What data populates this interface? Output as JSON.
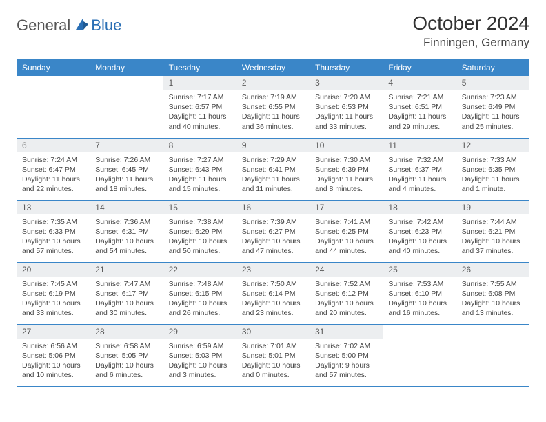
{
  "logo": {
    "part1": "General",
    "part2": "Blue"
  },
  "title": "October 2024",
  "location": "Finningen, Germany",
  "colors": {
    "header_bg": "#3a86c8",
    "header_fg": "#ffffff",
    "daynum_bg": "#eceef0",
    "border": "#3a86c8",
    "logo_gray": "#555555",
    "logo_blue": "#2a6fb5"
  },
  "weekdays": [
    "Sunday",
    "Monday",
    "Tuesday",
    "Wednesday",
    "Thursday",
    "Friday",
    "Saturday"
  ],
  "weeks": [
    [
      null,
      null,
      {
        "n": "1",
        "sr": "Sunrise: 7:17 AM",
        "ss": "Sunset: 6:57 PM",
        "dl": "Daylight: 11 hours and 40 minutes."
      },
      {
        "n": "2",
        "sr": "Sunrise: 7:19 AM",
        "ss": "Sunset: 6:55 PM",
        "dl": "Daylight: 11 hours and 36 minutes."
      },
      {
        "n": "3",
        "sr": "Sunrise: 7:20 AM",
        "ss": "Sunset: 6:53 PM",
        "dl": "Daylight: 11 hours and 33 minutes."
      },
      {
        "n": "4",
        "sr": "Sunrise: 7:21 AM",
        "ss": "Sunset: 6:51 PM",
        "dl": "Daylight: 11 hours and 29 minutes."
      },
      {
        "n": "5",
        "sr": "Sunrise: 7:23 AM",
        "ss": "Sunset: 6:49 PM",
        "dl": "Daylight: 11 hours and 25 minutes."
      }
    ],
    [
      {
        "n": "6",
        "sr": "Sunrise: 7:24 AM",
        "ss": "Sunset: 6:47 PM",
        "dl": "Daylight: 11 hours and 22 minutes."
      },
      {
        "n": "7",
        "sr": "Sunrise: 7:26 AM",
        "ss": "Sunset: 6:45 PM",
        "dl": "Daylight: 11 hours and 18 minutes."
      },
      {
        "n": "8",
        "sr": "Sunrise: 7:27 AM",
        "ss": "Sunset: 6:43 PM",
        "dl": "Daylight: 11 hours and 15 minutes."
      },
      {
        "n": "9",
        "sr": "Sunrise: 7:29 AM",
        "ss": "Sunset: 6:41 PM",
        "dl": "Daylight: 11 hours and 11 minutes."
      },
      {
        "n": "10",
        "sr": "Sunrise: 7:30 AM",
        "ss": "Sunset: 6:39 PM",
        "dl": "Daylight: 11 hours and 8 minutes."
      },
      {
        "n": "11",
        "sr": "Sunrise: 7:32 AM",
        "ss": "Sunset: 6:37 PM",
        "dl": "Daylight: 11 hours and 4 minutes."
      },
      {
        "n": "12",
        "sr": "Sunrise: 7:33 AM",
        "ss": "Sunset: 6:35 PM",
        "dl": "Daylight: 11 hours and 1 minute."
      }
    ],
    [
      {
        "n": "13",
        "sr": "Sunrise: 7:35 AM",
        "ss": "Sunset: 6:33 PM",
        "dl": "Daylight: 10 hours and 57 minutes."
      },
      {
        "n": "14",
        "sr": "Sunrise: 7:36 AM",
        "ss": "Sunset: 6:31 PM",
        "dl": "Daylight: 10 hours and 54 minutes."
      },
      {
        "n": "15",
        "sr": "Sunrise: 7:38 AM",
        "ss": "Sunset: 6:29 PM",
        "dl": "Daylight: 10 hours and 50 minutes."
      },
      {
        "n": "16",
        "sr": "Sunrise: 7:39 AM",
        "ss": "Sunset: 6:27 PM",
        "dl": "Daylight: 10 hours and 47 minutes."
      },
      {
        "n": "17",
        "sr": "Sunrise: 7:41 AM",
        "ss": "Sunset: 6:25 PM",
        "dl": "Daylight: 10 hours and 44 minutes."
      },
      {
        "n": "18",
        "sr": "Sunrise: 7:42 AM",
        "ss": "Sunset: 6:23 PM",
        "dl": "Daylight: 10 hours and 40 minutes."
      },
      {
        "n": "19",
        "sr": "Sunrise: 7:44 AM",
        "ss": "Sunset: 6:21 PM",
        "dl": "Daylight: 10 hours and 37 minutes."
      }
    ],
    [
      {
        "n": "20",
        "sr": "Sunrise: 7:45 AM",
        "ss": "Sunset: 6:19 PM",
        "dl": "Daylight: 10 hours and 33 minutes."
      },
      {
        "n": "21",
        "sr": "Sunrise: 7:47 AM",
        "ss": "Sunset: 6:17 PM",
        "dl": "Daylight: 10 hours and 30 minutes."
      },
      {
        "n": "22",
        "sr": "Sunrise: 7:48 AM",
        "ss": "Sunset: 6:15 PM",
        "dl": "Daylight: 10 hours and 26 minutes."
      },
      {
        "n": "23",
        "sr": "Sunrise: 7:50 AM",
        "ss": "Sunset: 6:14 PM",
        "dl": "Daylight: 10 hours and 23 minutes."
      },
      {
        "n": "24",
        "sr": "Sunrise: 7:52 AM",
        "ss": "Sunset: 6:12 PM",
        "dl": "Daylight: 10 hours and 20 minutes."
      },
      {
        "n": "25",
        "sr": "Sunrise: 7:53 AM",
        "ss": "Sunset: 6:10 PM",
        "dl": "Daylight: 10 hours and 16 minutes."
      },
      {
        "n": "26",
        "sr": "Sunrise: 7:55 AM",
        "ss": "Sunset: 6:08 PM",
        "dl": "Daylight: 10 hours and 13 minutes."
      }
    ],
    [
      {
        "n": "27",
        "sr": "Sunrise: 6:56 AM",
        "ss": "Sunset: 5:06 PM",
        "dl": "Daylight: 10 hours and 10 minutes."
      },
      {
        "n": "28",
        "sr": "Sunrise: 6:58 AM",
        "ss": "Sunset: 5:05 PM",
        "dl": "Daylight: 10 hours and 6 minutes."
      },
      {
        "n": "29",
        "sr": "Sunrise: 6:59 AM",
        "ss": "Sunset: 5:03 PM",
        "dl": "Daylight: 10 hours and 3 minutes."
      },
      {
        "n": "30",
        "sr": "Sunrise: 7:01 AM",
        "ss": "Sunset: 5:01 PM",
        "dl": "Daylight: 10 hours and 0 minutes."
      },
      {
        "n": "31",
        "sr": "Sunrise: 7:02 AM",
        "ss": "Sunset: 5:00 PM",
        "dl": "Daylight: 9 hours and 57 minutes."
      },
      null,
      null
    ]
  ]
}
